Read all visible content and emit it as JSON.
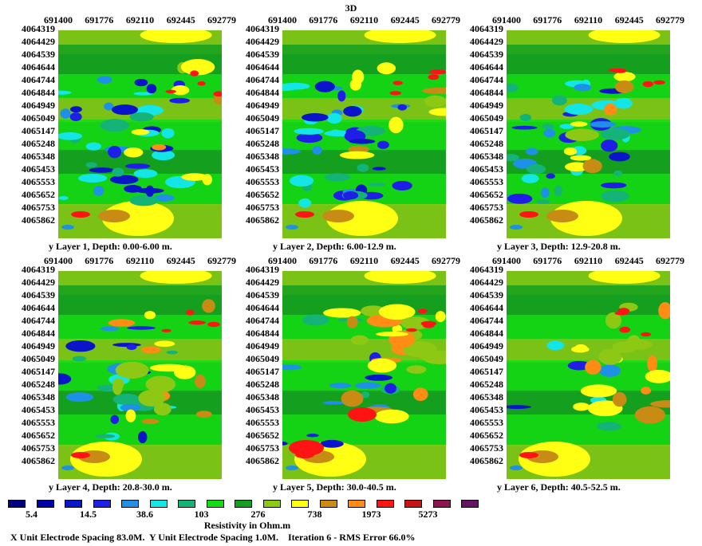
{
  "title": "3D",
  "chart_data": {
    "type": "heatmap",
    "title": "3D",
    "xlabel": "",
    "ylabel": "y",
    "x_ticks": [
      "691400",
      "691776",
      "692110",
      "692445",
      "692779"
    ],
    "y_ticks": [
      "4064319",
      "4064429",
      "4064539",
      "4064644",
      "4064744",
      "4064844",
      "4064949",
      "4065049",
      "4065147",
      "4065248",
      "4065348",
      "4065453",
      "4065553",
      "4065652",
      "4065753",
      "4065862"
    ],
    "x_range": [
      691400,
      692779
    ],
    "y_range": [
      4064319,
      4065862
    ],
    "layers": [
      {
        "name": "Layer 1",
        "caption": "Layer 1, Depth: 0.00-6.00 m.",
        "depth_from": 0.0,
        "depth_to": 6.0
      },
      {
        "name": "Layer 2",
        "caption": "Layer 2, Depth: 6.00-12.9 m.",
        "depth_from": 6.0,
        "depth_to": 12.9
      },
      {
        "name": "Layer 3",
        "caption": "Layer 3, Depth: 12.9-20.8 m.",
        "depth_from": 12.9,
        "depth_to": 20.8
      },
      {
        "name": "Layer 4",
        "caption": "Layer 4, Depth: 20.8-30.0 m.",
        "depth_from": 20.8,
        "depth_to": 30.0
      },
      {
        "name": "Layer 5",
        "caption": "Layer 5, Depth: 30.0-40.5 m.",
        "depth_from": 30.0,
        "depth_to": 40.5
      },
      {
        "name": "Layer 6",
        "caption": "Layer 6, Depth: 40.5-52.5 m.",
        "depth_from": 40.5,
        "depth_to": 52.5
      }
    ],
    "colorscale": {
      "colors": [
        "#000080",
        "#0000a8",
        "#0a14c8",
        "#1e1ee6",
        "#1e90e6",
        "#14e6e6",
        "#14b478",
        "#14dc14",
        "#14a01e",
        "#8cc814",
        "#ffff14",
        "#c88c14",
        "#ff8c14",
        "#ff1414",
        "#c81414",
        "#8c1450",
        "#641464"
      ],
      "labels": [
        "5.4",
        "14.5",
        "38.6",
        "103",
        "276",
        "738",
        "1973",
        "5273"
      ],
      "label_positions": [
        1,
        3,
        5,
        7,
        9,
        11,
        13,
        15
      ],
      "title": "Resistivity in Ohm.m"
    }
  },
  "y_axis_letter": "y",
  "footer": "X Unit Electrode Spacing 83.0M.  Y Unit Electrode Spacing 1.0M.    Iteration 6 - RMS Error 66.0%"
}
